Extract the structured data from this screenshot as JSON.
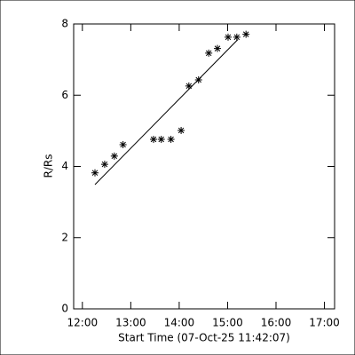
{
  "chart_data": {
    "type": "scatter",
    "xlabel": "Start Time (07-Oct-25 11:42:07)",
    "ylabel": "R/Rs",
    "x": [
      12.26,
      12.46,
      12.66,
      12.84,
      13.47,
      13.63,
      13.83,
      14.04,
      14.2,
      14.4,
      14.61,
      14.79,
      15.01,
      15.19,
      15.38
    ],
    "values": [
      3.82,
      4.06,
      4.29,
      4.61,
      4.76,
      4.76,
      4.76,
      5.01,
      6.26,
      6.43,
      7.18,
      7.31,
      7.63,
      7.63,
      7.71
    ],
    "fit": {
      "x": [
        12.26,
        15.21
      ],
      "y": [
        3.49,
        7.56
      ]
    },
    "color": "#000000",
    "xlim": [
      11.82,
      17.21
    ],
    "xticks": [
      {
        "value": 12,
        "label": "12:00"
      },
      {
        "value": 13,
        "label": "13:00"
      },
      {
        "value": 14,
        "label": "14:00"
      },
      {
        "value": 15,
        "label": "15:00"
      },
      {
        "value": 16,
        "label": "16:00"
      },
      {
        "value": 17,
        "label": "17:00"
      }
    ],
    "ylim": [
      0,
      8
    ],
    "yticks": [
      0,
      2,
      4,
      6,
      8
    ]
  }
}
